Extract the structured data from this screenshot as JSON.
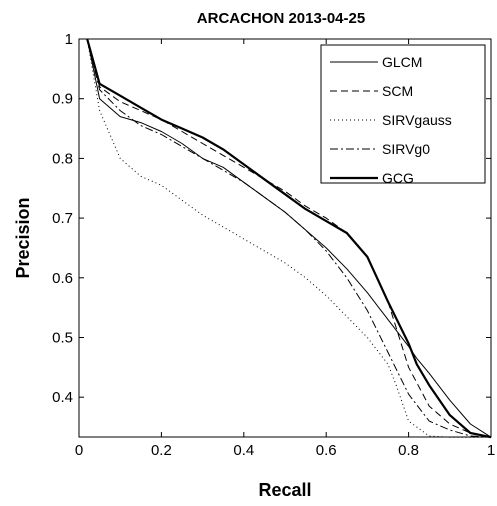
{
  "chart_data": {
    "type": "line",
    "title": "ARCACHON 2013-04-25",
    "xlabel": "Recall",
    "ylabel": "Precision",
    "xlim": [
      0,
      1
    ],
    "ylim": [
      0.3333,
      1
    ],
    "xticks": [
      "0",
      "0.2",
      "0.4",
      "0.6",
      "0.8",
      "1"
    ],
    "yticks": [
      "0.4",
      "0.5",
      "0.6",
      "0.7",
      "0.8",
      "0.9",
      "1"
    ],
    "xtick_values": [
      0,
      0.2,
      0.4,
      0.6,
      0.8,
      1
    ],
    "ytick_values": [
      0.4,
      0.5,
      0.6,
      0.7,
      0.8,
      0.9,
      1
    ],
    "grid": false,
    "legend_position": "top-right",
    "series": [
      {
        "name": "GLCM",
        "style": "solid-thin",
        "color": "#000000",
        "x": [
          0.02,
          0.05,
          0.1,
          0.15,
          0.2,
          0.25,
          0.3,
          0.35,
          0.4,
          0.45,
          0.5,
          0.55,
          0.6,
          0.65,
          0.7,
          0.75,
          0.8,
          0.82,
          0.85,
          0.9,
          0.95,
          1.0
        ],
        "y": [
          1.0,
          0.9,
          0.87,
          0.86,
          0.845,
          0.825,
          0.8,
          0.785,
          0.76,
          0.735,
          0.71,
          0.68,
          0.65,
          0.615,
          0.575,
          0.53,
          0.485,
          0.465,
          0.44,
          0.395,
          0.355,
          0.333
        ]
      },
      {
        "name": "SCM",
        "style": "dashed",
        "color": "#000000",
        "x": [
          0.02,
          0.05,
          0.1,
          0.15,
          0.2,
          0.25,
          0.3,
          0.35,
          0.4,
          0.45,
          0.5,
          0.55,
          0.6,
          0.65,
          0.7,
          0.75,
          0.8,
          0.85,
          0.9,
          0.95,
          1.0
        ],
        "y": [
          1.0,
          0.92,
          0.895,
          0.88,
          0.865,
          0.845,
          0.825,
          0.805,
          0.785,
          0.765,
          0.745,
          0.72,
          0.7,
          0.675,
          0.635,
          0.56,
          0.45,
          0.385,
          0.355,
          0.34,
          0.333
        ]
      },
      {
        "name": "SIRVgauss",
        "style": "dotted",
        "color": "#000000",
        "x": [
          0.02,
          0.05,
          0.1,
          0.15,
          0.2,
          0.25,
          0.3,
          0.35,
          0.4,
          0.45,
          0.5,
          0.55,
          0.6,
          0.65,
          0.7,
          0.75,
          0.77,
          0.8,
          0.85,
          0.9,
          0.95,
          1.0
        ],
        "y": [
          1.0,
          0.88,
          0.8,
          0.77,
          0.755,
          0.73,
          0.705,
          0.685,
          0.665,
          0.645,
          0.625,
          0.6,
          0.57,
          0.535,
          0.5,
          0.455,
          0.42,
          0.36,
          0.335,
          0.333,
          0.333,
          0.333
        ]
      },
      {
        "name": "SIRVg0",
        "style": "dashdot",
        "color": "#000000",
        "x": [
          0.02,
          0.05,
          0.1,
          0.15,
          0.2,
          0.25,
          0.3,
          0.35,
          0.4,
          0.45,
          0.5,
          0.55,
          0.6,
          0.65,
          0.7,
          0.75,
          0.8,
          0.85,
          0.9,
          0.95,
          1.0
        ],
        "y": [
          1.0,
          0.915,
          0.88,
          0.855,
          0.84,
          0.82,
          0.8,
          0.78,
          0.76,
          0.735,
          0.71,
          0.68,
          0.645,
          0.6,
          0.545,
          0.475,
          0.405,
          0.36,
          0.345,
          0.335,
          0.333
        ]
      },
      {
        "name": "GCG",
        "style": "solid-thick",
        "color": "#000000",
        "x": [
          0.02,
          0.05,
          0.1,
          0.15,
          0.2,
          0.25,
          0.3,
          0.35,
          0.4,
          0.45,
          0.5,
          0.55,
          0.6,
          0.65,
          0.7,
          0.75,
          0.8,
          0.82,
          0.85,
          0.9,
          0.95,
          1.0
        ],
        "y": [
          1.0,
          0.925,
          0.905,
          0.885,
          0.865,
          0.85,
          0.835,
          0.815,
          0.79,
          0.765,
          0.74,
          0.715,
          0.695,
          0.675,
          0.635,
          0.56,
          0.49,
          0.455,
          0.42,
          0.37,
          0.34,
          0.333
        ]
      }
    ]
  }
}
